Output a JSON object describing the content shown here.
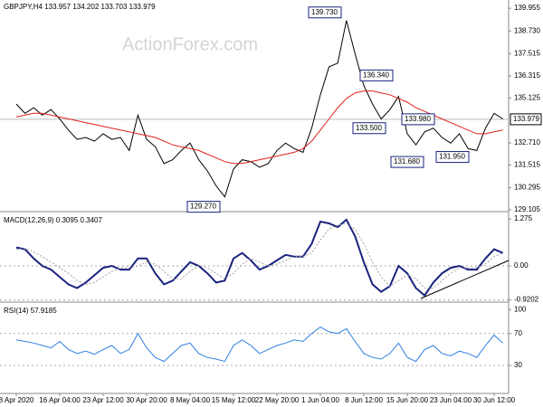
{
  "watermark": "ActionForex.com",
  "chart_data": [
    {
      "type": "line",
      "title": "GBPJPY,H4  133.957 134.202 133.703 133.979",
      "categories": [
        "8 Apr 2020",
        null,
        null,
        null,
        null,
        "16 Apr 04:00",
        null,
        null,
        null,
        null,
        "23 Apr 12:00",
        null,
        null,
        null,
        null,
        "30 Apr 20:00",
        null,
        null,
        null,
        null,
        "8 May 04:00",
        null,
        null,
        null,
        null,
        "15 May 12:00",
        null,
        null,
        null,
        null,
        "22 May 20:00",
        null,
        null,
        null,
        null,
        "1 Jun 04:00",
        null,
        null,
        null,
        null,
        "8 Jun 12:00",
        null,
        null,
        null,
        null,
        "15 Jun 20:00",
        null,
        null,
        null,
        null,
        "23 Jun 04:00",
        null,
        null,
        null,
        null,
        "30 Jun 12:00",
        null
      ],
      "series": [
        {
          "name": "GBPJPY",
          "color": "#000000",
          "values": [
            134.8,
            134.3,
            134.6,
            134.2,
            134.5,
            134.0,
            133.4,
            132.9,
            133.0,
            132.8,
            133.2,
            132.9,
            133.0,
            132.3,
            134.2,
            132.9,
            132.5,
            131.6,
            131.8,
            132.3,
            132.7,
            131.8,
            131.2,
            130.4,
            129.8,
            131.3,
            131.8,
            131.7,
            131.4,
            131.6,
            132.3,
            132.7,
            132.4,
            132.2,
            133.5,
            135.3,
            136.8,
            137.0,
            139.3,
            137.5,
            135.8,
            134.8,
            134.0,
            134.5,
            135.2,
            133.2,
            132.6,
            133.3,
            133.5,
            133.0,
            132.7,
            133.2,
            132.4,
            132.3,
            133.5,
            134.3,
            134.0
          ]
        },
        {
          "name": "MA",
          "color": "#e02020",
          "values": [
            134.1,
            134.2,
            134.3,
            134.3,
            134.2,
            134.1,
            134.0,
            133.9,
            133.8,
            133.7,
            133.6,
            133.5,
            133.4,
            133.3,
            133.2,
            133.1,
            133.0,
            132.8,
            132.6,
            132.5,
            132.4,
            132.3,
            132.1,
            131.9,
            131.7,
            131.6,
            131.6,
            131.7,
            131.8,
            131.9,
            132.0,
            132.1,
            132.2,
            132.4,
            132.8,
            133.4,
            134.0,
            134.6,
            135.1,
            135.4,
            135.5,
            135.5,
            135.4,
            135.3,
            135.1,
            134.9,
            134.6,
            134.4,
            134.2,
            134.0,
            133.8,
            133.6,
            133.4,
            133.2,
            133.2,
            133.3,
            133.4
          ]
        }
      ],
      "ylim": [
        129.105,
        140.4
      ],
      "yticks": [
        139.955,
        {
          "value": 138.73,
          "label": "138.730"
        },
        137.515,
        136.315,
        135.125,
        {
          "value": 132.71,
          "label": "132.710"
        },
        131.515,
        130.295,
        129.105
      ],
      "last_price": 133.979,
      "annotations": [
        {
          "value": 139.73,
          "label": "139.730"
        },
        {
          "value": 136.34,
          "label": "136.340"
        },
        {
          "value": 133.5,
          "label": "133.500"
        },
        {
          "value": 133.98,
          "label": "133.980"
        },
        {
          "value": 131.68,
          "label": "131.680"
        },
        {
          "value": 131.95,
          "label": "131.950"
        },
        {
          "value": 129.27,
          "label": "129.270"
        }
      ]
    },
    {
      "type": "line",
      "title": "MACD(12,26,9) 0.3095 0.3407",
      "series": [
        {
          "name": "MACD",
          "color": "#1a237e",
          "values": [
            0.5,
            0.45,
            0.2,
            0.0,
            -0.1,
            -0.3,
            -0.5,
            -0.6,
            -0.45,
            -0.25,
            -0.05,
            0.0,
            -0.1,
            -0.1,
            0.2,
            0.2,
            -0.2,
            -0.5,
            -0.4,
            -0.15,
            0.1,
            0.0,
            -0.2,
            -0.45,
            -0.4,
            0.2,
            0.35,
            0.15,
            -0.1,
            0.0,
            0.15,
            0.3,
            0.25,
            0.25,
            0.6,
            1.2,
            1.15,
            1.05,
            1.25,
            0.8,
            0.1,
            -0.5,
            -0.7,
            -0.55,
            0.0,
            -0.2,
            -0.6,
            -0.8,
            -0.45,
            -0.2,
            -0.05,
            0.0,
            -0.1,
            -0.1,
            0.2,
            0.45,
            0.35
          ]
        },
        {
          "name": "Signal",
          "color": "#a0a0a0",
          "values": [
            0.45,
            0.47,
            0.38,
            0.25,
            0.1,
            -0.05,
            -0.2,
            -0.4,
            -0.5,
            -0.45,
            -0.3,
            -0.15,
            -0.05,
            -0.05,
            0.0,
            0.1,
            0.05,
            -0.15,
            -0.35,
            -0.35,
            -0.15,
            0.0,
            -0.05,
            -0.2,
            -0.35,
            -0.2,
            0.05,
            0.2,
            0.1,
            0.0,
            0.05,
            0.15,
            0.25,
            0.25,
            0.35,
            0.7,
            1.0,
            1.1,
            1.15,
            1.0,
            0.6,
            0.1,
            -0.3,
            -0.55,
            -0.4,
            -0.25,
            -0.35,
            -0.6,
            -0.6,
            -0.4,
            -0.2,
            -0.05,
            -0.05,
            -0.05,
            0.05,
            0.25,
            0.35
          ]
        }
      ],
      "ylim": [
        -0.93,
        1.42
      ],
      "yticks": [
        1.275,
        {
          "value": 0,
          "label": "0.00"
        },
        -0.9202
      ]
    },
    {
      "type": "line",
      "title": "RSI(14) 57.9185",
      "series": [
        {
          "name": "RSI",
          "color": "#2f7fe0",
          "values": [
            62,
            60,
            58,
            55,
            52,
            60,
            50,
            45,
            48,
            44,
            50,
            55,
            45,
            50,
            70,
            52,
            40,
            35,
            45,
            55,
            58,
            45,
            40,
            38,
            35,
            55,
            62,
            55,
            45,
            50,
            55,
            58,
            62,
            60,
            70,
            78,
            72,
            70,
            76,
            60,
            45,
            40,
            38,
            45,
            58,
            40,
            35,
            50,
            55,
            45,
            42,
            48,
            45,
            40,
            55,
            68,
            58
          ]
        }
      ],
      "ylim": [
        -5,
        107
      ],
      "yticks": [
        100,
        70,
        30
      ]
    }
  ]
}
